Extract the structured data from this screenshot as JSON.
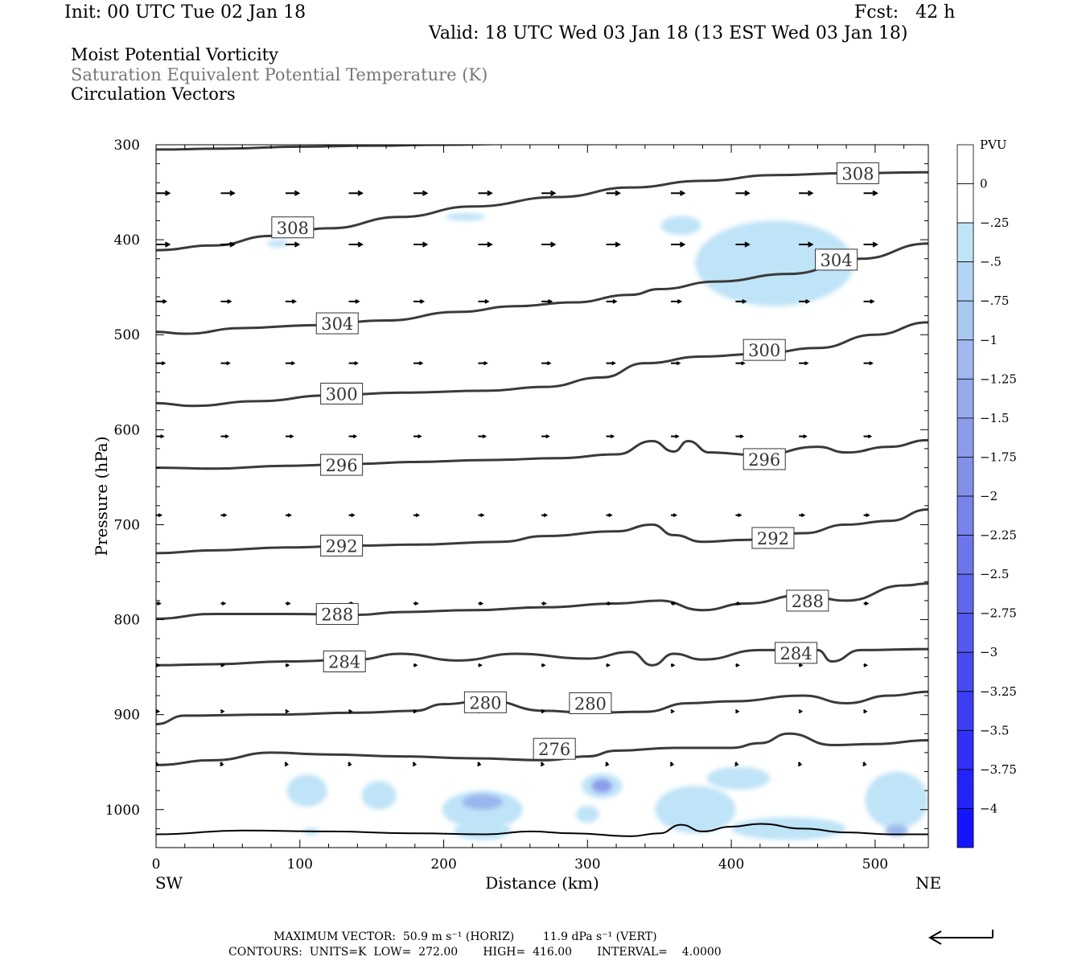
{
  "header": {
    "init": "Init: 00 UTC Tue 02 Jan 18",
    "fcst": "Fcst:   42 h",
    "valid": "Valid: 18 UTC Wed 03 Jan 18 (13 EST Wed 03 Jan 18)"
  },
  "fields": {
    "line1": "Moist Potential Vorticity",
    "line2": "Saturation Equivalent Potential Temperature (K)",
    "line3": "Circulation Vectors"
  },
  "footer": {
    "max_vector": "MAXIMUM VECTOR:  50.9 m s⁻¹ (HORIZ)        11.9 dPa s⁻¹ (VERT)",
    "contours": "CONTOURS:  UNITS=K  LOW=  272.00       HIGH=  416.00       INTERVAL=    4.0000"
  },
  "colors": {
    "contour": "#3a3a3a",
    "pv_light": "#bfe3f7",
    "pv_mid": "#a8c8f0",
    "pv_strong": "#1010ff"
  },
  "chart_data": {
    "type": "cross-section",
    "xlabel": "Distance (km)",
    "ylabel": "Pressure (hPa)",
    "x_ticks": [
      0,
      100,
      200,
      300,
      400,
      500
    ],
    "y_ticks": [
      300,
      400,
      500,
      600,
      700,
      800,
      900,
      1000
    ],
    "xlim": [
      0,
      537
    ],
    "ylim": [
      300,
      1040
    ],
    "x_end_labels": {
      "left": "SW",
      "right": "NE"
    },
    "colorbar": {
      "unit": "PVU",
      "labels": [
        "0",
        "-.25",
        "-.5",
        "-.75",
        "-1",
        "-1.25",
        "-1.5",
        "-1.75",
        "-2",
        "-2.25",
        "-2.5",
        "-2.75",
        "-3",
        "-3.25",
        "-3.5",
        "-3.75",
        "-4"
      ],
      "colors": [
        "#ffffff",
        "#ffffff",
        "#bfe3f7",
        "#b4d4f5",
        "#a8c8f0",
        "#a0b8ee",
        "#96abec",
        "#8c9cea",
        "#8290e8",
        "#7884e9",
        "#6c76ea",
        "#6068ec",
        "#545aee",
        "#484cf0",
        "#3c3ef3",
        "#3030f6",
        "#2424f8",
        "#1515fb"
      ]
    },
    "contours": [
      {
        "level": "308",
        "points": [
          [
            0,
            305
          ],
          [
            50,
            304
          ],
          [
            100,
            302
          ],
          [
            150,
            301
          ],
          [
            200,
            300
          ],
          [
            250,
            299
          ],
          [
            300,
            298
          ]
        ]
      },
      {
        "level": "308",
        "points": [
          [
            0,
            411
          ],
          [
            40,
            406
          ],
          [
            80,
            396
          ],
          [
            120,
            388
          ],
          [
            170,
            376
          ],
          [
            220,
            365
          ],
          [
            280,
            355
          ],
          [
            330,
            345
          ],
          [
            380,
            338
          ],
          [
            430,
            332
          ],
          [
            480,
            330
          ],
          [
            537,
            329
          ]
        ]
      },
      {
        "level": "304",
        "points": [
          [
            0,
            497
          ],
          [
            20,
            499
          ],
          [
            60,
            493
          ],
          [
            110,
            490
          ],
          [
            160,
            485
          ],
          [
            210,
            476
          ],
          [
            250,
            470
          ],
          [
            290,
            466
          ],
          [
            330,
            458
          ],
          [
            350,
            452
          ],
          [
            390,
            444
          ],
          [
            440,
            436
          ],
          [
            490,
            420
          ],
          [
            537,
            404
          ]
        ]
      },
      {
        "level": "300",
        "points": [
          [
            0,
            572
          ],
          [
            25,
            575
          ],
          [
            70,
            570
          ],
          [
            120,
            564
          ],
          [
            170,
            561
          ],
          [
            230,
            559
          ],
          [
            270,
            555
          ],
          [
            310,
            545
          ],
          [
            340,
            530
          ],
          [
            380,
            523
          ],
          [
            420,
            520
          ],
          [
            460,
            514
          ],
          [
            500,
            500
          ],
          [
            537,
            487
          ]
        ]
      },
      {
        "level": "296",
        "points": [
          [
            0,
            640
          ],
          [
            40,
            641
          ],
          [
            90,
            638
          ],
          [
            140,
            636
          ],
          [
            180,
            634
          ],
          [
            230,
            632
          ],
          [
            280,
            630
          ],
          [
            320,
            626
          ],
          [
            345,
            612
          ],
          [
            360,
            623
          ],
          [
            370,
            612
          ],
          [
            385,
            624
          ],
          [
            420,
            627
          ],
          [
            460,
            618
          ],
          [
            480,
            624
          ],
          [
            510,
            618
          ],
          [
            537,
            611
          ]
        ]
      },
      {
        "level": "292",
        "points": [
          [
            0,
            730
          ],
          [
            40,
            727
          ],
          [
            90,
            724
          ],
          [
            140,
            722
          ],
          [
            180,
            721
          ],
          [
            240,
            718
          ],
          [
            270,
            712
          ],
          [
            320,
            707
          ],
          [
            345,
            700
          ],
          [
            360,
            711
          ],
          [
            380,
            718
          ],
          [
            410,
            716
          ],
          [
            450,
            709
          ],
          [
            480,
            700
          ],
          [
            510,
            696
          ],
          [
            537,
            684
          ]
        ]
      },
      {
        "level": "288",
        "points": [
          [
            0,
            799
          ],
          [
            40,
            794
          ],
          [
            90,
            794
          ],
          [
            140,
            795
          ],
          [
            170,
            792
          ],
          [
            220,
            790
          ],
          [
            270,
            787
          ],
          [
            320,
            783
          ],
          [
            350,
            780
          ],
          [
            380,
            790
          ],
          [
            410,
            783
          ],
          [
            450,
            774
          ],
          [
            480,
            780
          ],
          [
            520,
            764
          ],
          [
            537,
            762
          ]
        ]
      },
      {
        "level": "284",
        "points": [
          [
            0,
            848
          ],
          [
            40,
            847
          ],
          [
            90,
            844
          ],
          [
            140,
            842
          ],
          [
            170,
            836
          ],
          [
            210,
            843
          ],
          [
            250,
            836
          ],
          [
            300,
            841
          ],
          [
            330,
            834
          ],
          [
            345,
            848
          ],
          [
            360,
            836
          ],
          [
            380,
            842
          ],
          [
            420,
            832
          ],
          [
            460,
            832
          ],
          [
            470,
            844
          ],
          [
            490,
            832
          ],
          [
            537,
            831
          ]
        ]
      },
      {
        "level": "280",
        "points": [
          [
            0,
            910
          ],
          [
            20,
            901
          ],
          [
            80,
            900
          ],
          [
            140,
            898
          ],
          [
            180,
            896
          ],
          [
            200,
            889
          ],
          [
            230,
            885
          ],
          [
            270,
            896
          ],
          [
            300,
            898
          ],
          [
            340,
            897
          ],
          [
            370,
            888
          ],
          [
            400,
            886
          ],
          [
            450,
            880
          ],
          [
            480,
            888
          ],
          [
            510,
            880
          ],
          [
            537,
            876
          ]
        ]
      },
      {
        "level": "276",
        "points": [
          [
            0,
            953
          ],
          [
            40,
            948
          ],
          [
            80,
            940
          ],
          [
            120,
            942
          ],
          [
            170,
            944
          ],
          [
            220,
            946
          ],
          [
            270,
            948
          ],
          [
            300,
            944
          ],
          [
            320,
            938
          ],
          [
            360,
            935
          ],
          [
            400,
            935
          ],
          [
            420,
            930
          ],
          [
            440,
            920
          ],
          [
            470,
            932
          ],
          [
            500,
            931
          ],
          [
            537,
            927
          ]
        ]
      },
      {
        "level": "",
        "points": [
          [
            0,
            1026
          ],
          [
            60,
            1022
          ],
          [
            120,
            1023
          ],
          [
            180,
            1025
          ],
          [
            230,
            1026
          ],
          [
            260,
            1023
          ],
          [
            290,
            1025
          ],
          [
            330,
            1028
          ],
          [
            350,
            1025
          ],
          [
            365,
            1016
          ],
          [
            380,
            1023
          ],
          [
            400,
            1018
          ],
          [
            420,
            1015
          ],
          [
            450,
            1020
          ],
          [
            480,
            1024
          ],
          [
            510,
            1026
          ],
          [
            537,
            1026
          ]
        ]
      }
    ],
    "contour_labels": [
      {
        "text": "308",
        "x": 95,
        "p": 387
      },
      {
        "text": "308",
        "x": 488,
        "p": 330
      },
      {
        "text": "304",
        "x": 126,
        "p": 488
      },
      {
        "text": "304",
        "x": 473,
        "p": 421
      },
      {
        "text": "300",
        "x": 129,
        "p": 562
      },
      {
        "text": "300",
        "x": 423,
        "p": 516
      },
      {
        "text": "296",
        "x": 129,
        "p": 637
      },
      {
        "text": "296",
        "x": 423,
        "p": 631
      },
      {
        "text": "292",
        "x": 129,
        "p": 722
      },
      {
        "text": "292",
        "x": 429,
        "p": 714
      },
      {
        "text": "288",
        "x": 126,
        "p": 794
      },
      {
        "text": "288",
        "x": 453,
        "p": 780
      },
      {
        "text": "284",
        "x": 131,
        "p": 844
      },
      {
        "text": "284",
        "x": 445,
        "p": 835
      },
      {
        "text": "280",
        "x": 229,
        "p": 887
      },
      {
        "text": "280",
        "x": 302,
        "p": 888
      },
      {
        "text": "276",
        "x": 277,
        "p": 936
      }
    ],
    "vector_rows": [
      {
        "p": 351,
        "len": 38,
        "rise": 0
      },
      {
        "p": 405,
        "len": 38,
        "rise": 0
      },
      {
        "p": 465,
        "len": 28,
        "rise": 0
      },
      {
        "p": 530,
        "len": 24,
        "rise": 0
      },
      {
        "p": 607,
        "len": 20,
        "rise": 0
      },
      {
        "p": 690,
        "len": 14,
        "rise": 0
      },
      {
        "p": 783,
        "len": 11,
        "rise": 0
      },
      {
        "p": 848,
        "len": 8,
        "rise": 0
      },
      {
        "p": 895,
        "len": 7,
        "rise": 2
      },
      {
        "p": 950,
        "len": 5,
        "rise": 3
      }
    ],
    "vector_x": [
      0,
      45,
      90,
      134,
      179,
      224,
      268,
      313,
      358,
      403,
      447,
      492
    ],
    "pv_blobs": [
      {
        "x": 430,
        "p": 425,
        "rx": 55,
        "rp": 45,
        "level": 1
      },
      {
        "x": 365,
        "p": 385,
        "rx": 14,
        "rp": 10,
        "level": 1
      },
      {
        "x": 215,
        "p": 376,
        "rx": 14,
        "rp": 4,
        "level": 1
      },
      {
        "x": 85,
        "p": 404,
        "rx": 8,
        "rp": 4,
        "level": 1
      },
      {
        "x": 108,
        "p": 1023,
        "rx": 6,
        "rp": 4,
        "level": 1
      },
      {
        "x": 105,
        "p": 980,
        "rx": 14,
        "rp": 17,
        "level": 1
      },
      {
        "x": 155,
        "p": 985,
        "rx": 12,
        "rp": 15,
        "level": 1
      },
      {
        "x": 227,
        "p": 1000,
        "rx": 28,
        "rp": 20,
        "level": 1
      },
      {
        "x": 227,
        "p": 992,
        "rx": 14,
        "rp": 8,
        "level": 3
      },
      {
        "x": 227,
        "p": 1022,
        "rx": 20,
        "rp": 10,
        "level": 1
      },
      {
        "x": 310,
        "p": 975,
        "rx": 14,
        "rp": 13,
        "level": 1
      },
      {
        "x": 310,
        "p": 975,
        "rx": 7,
        "rp": 7,
        "level": 4
      },
      {
        "x": 405,
        "p": 967,
        "rx": 22,
        "rp": 12,
        "level": 1
      },
      {
        "x": 375,
        "p": 1000,
        "rx": 28,
        "rp": 25,
        "level": 1
      },
      {
        "x": 440,
        "p": 1020,
        "rx": 40,
        "rp": 12,
        "level": 1
      },
      {
        "x": 515,
        "p": 990,
        "rx": 22,
        "rp": 30,
        "level": 1
      },
      {
        "x": 515,
        "p": 1022,
        "rx": 8,
        "rp": 6,
        "level": 3
      },
      {
        "x": 300,
        "p": 1005,
        "rx": 8,
        "rp": 9,
        "level": 1
      }
    ]
  }
}
